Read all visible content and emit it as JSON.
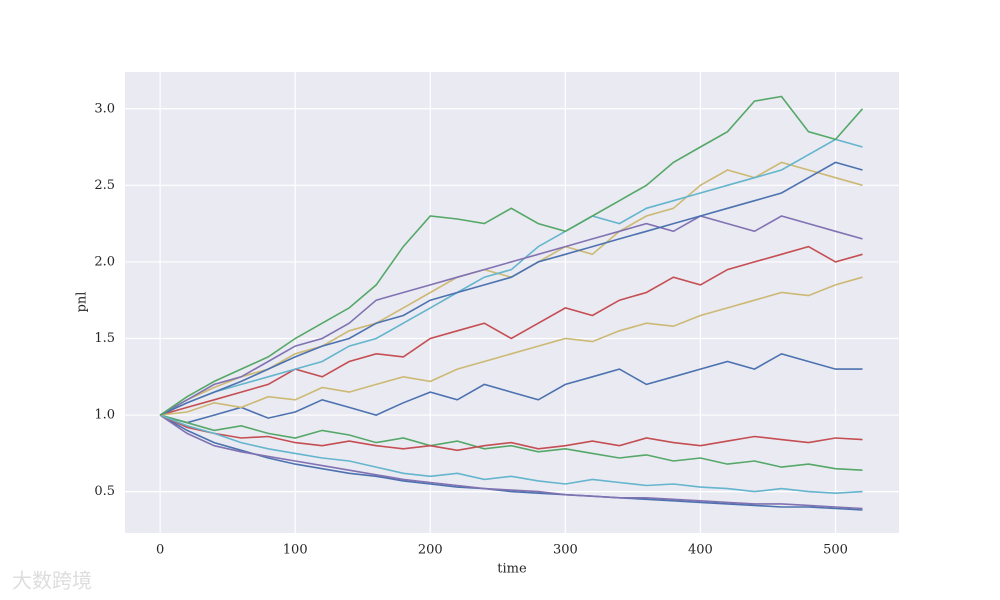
{
  "chart_data": {
    "type": "line",
    "xlabel": "time",
    "ylabel": "pnl",
    "xlim": [
      -26,
      547
    ],
    "ylim": [
      0.23,
      3.24
    ],
    "xticks": [
      0,
      100,
      200,
      300,
      400,
      500
    ],
    "yticks": [
      {
        "value": 0.5,
        "label": "0.5"
      },
      {
        "value": 1,
        "label": "1.0"
      },
      {
        "value": 1.5,
        "label": "1.5"
      },
      {
        "value": 2,
        "label": "2.0"
      },
      {
        "value": 2.5,
        "label": "2.5"
      },
      {
        "value": 3,
        "label": "3.0"
      }
    ],
    "grid": true,
    "background": "#eaeaf2",
    "x": [
      0,
      20,
      40,
      60,
      80,
      100,
      120,
      140,
      160,
      180,
      200,
      220,
      240,
      260,
      280,
      300,
      320,
      340,
      360,
      380,
      400,
      420,
      440,
      460,
      480,
      500,
      520
    ],
    "series": [
      {
        "color": "#4c72b0",
        "values": [
          1.0,
          0.9,
          0.82,
          0.77,
          0.72,
          0.68,
          0.65,
          0.62,
          0.6,
          0.57,
          0.55,
          0.53,
          0.52,
          0.5,
          0.49,
          0.48,
          0.47,
          0.46,
          0.45,
          0.44,
          0.43,
          0.42,
          0.41,
          0.4,
          0.4,
          0.39,
          0.38
        ]
      },
      {
        "color": "#8172b2",
        "values": [
          1.0,
          0.88,
          0.8,
          0.76,
          0.73,
          0.7,
          0.67,
          0.64,
          0.61,
          0.58,
          0.56,
          0.54,
          0.52,
          0.51,
          0.5,
          0.48,
          0.47,
          0.46,
          0.46,
          0.45,
          0.44,
          0.43,
          0.42,
          0.42,
          0.41,
          0.4,
          0.39
        ]
      },
      {
        "color": "#c44e52",
        "values": [
          1.0,
          1.05,
          1.1,
          1.15,
          1.2,
          1.3,
          1.25,
          1.35,
          1.4,
          1.38,
          1.5,
          1.55,
          1.6,
          1.5,
          1.6,
          1.7,
          1.65,
          1.75,
          1.8,
          1.9,
          1.85,
          1.95,
          2.0,
          2.05,
          2.1,
          2.0,
          2.05
        ]
      },
      {
        "color": "#ccb974",
        "values": [
          1.0,
          1.1,
          1.18,
          1.25,
          1.3,
          1.4,
          1.45,
          1.55,
          1.6,
          1.7,
          1.8,
          1.9,
          1.95,
          1.9,
          2.0,
          2.1,
          2.05,
          2.2,
          2.3,
          2.35,
          2.5,
          2.6,
          2.55,
          2.65,
          2.6,
          2.55,
          2.5
        ]
      },
      {
        "color": "#64b5cd",
        "values": [
          1.0,
          1.08,
          1.15,
          1.2,
          1.25,
          1.3,
          1.35,
          1.45,
          1.5,
          1.6,
          1.7,
          1.8,
          1.9,
          1.95,
          2.1,
          2.2,
          2.3,
          2.25,
          2.35,
          2.4,
          2.45,
          2.5,
          2.55,
          2.6,
          2.7,
          2.8,
          2.75
        ]
      },
      {
        "color": "#4c72b0",
        "values": [
          1.0,
          0.95,
          1.0,
          1.05,
          0.98,
          1.02,
          1.1,
          1.05,
          1.0,
          1.08,
          1.15,
          1.1,
          1.2,
          1.15,
          1.1,
          1.2,
          1.25,
          1.3,
          1.2,
          1.25,
          1.3,
          1.35,
          1.3,
          1.4,
          1.35,
          1.3,
          1.3
        ]
      },
      {
        "color": "#55a868",
        "values": [
          1.0,
          0.95,
          0.9,
          0.93,
          0.88,
          0.85,
          0.9,
          0.87,
          0.82,
          0.85,
          0.8,
          0.83,
          0.78,
          0.8,
          0.76,
          0.78,
          0.75,
          0.72,
          0.74,
          0.7,
          0.72,
          0.68,
          0.7,
          0.66,
          0.68,
          0.65,
          0.64
        ]
      },
      {
        "color": "#c44e52",
        "values": [
          1.0,
          0.92,
          0.88,
          0.85,
          0.86,
          0.82,
          0.8,
          0.83,
          0.8,
          0.78,
          0.8,
          0.77,
          0.8,
          0.82,
          0.78,
          0.8,
          0.83,
          0.8,
          0.85,
          0.82,
          0.8,
          0.83,
          0.86,
          0.84,
          0.82,
          0.85,
          0.84
        ]
      },
      {
        "color": "#8172b2",
        "values": [
          1.0,
          1.1,
          1.2,
          1.25,
          1.35,
          1.45,
          1.5,
          1.6,
          1.75,
          1.8,
          1.85,
          1.9,
          1.95,
          2.0,
          2.05,
          2.1,
          2.15,
          2.2,
          2.25,
          2.2,
          2.3,
          2.25,
          2.2,
          2.3,
          2.25,
          2.2,
          2.15
        ]
      },
      {
        "color": "#64b5cd",
        "values": [
          1.0,
          0.93,
          0.88,
          0.82,
          0.78,
          0.75,
          0.72,
          0.7,
          0.66,
          0.62,
          0.6,
          0.62,
          0.58,
          0.6,
          0.57,
          0.55,
          0.58,
          0.56,
          0.54,
          0.55,
          0.53,
          0.52,
          0.5,
          0.52,
          0.5,
          0.49,
          0.5
        ]
      },
      {
        "color": "#ccb974",
        "values": [
          1.0,
          1.02,
          1.08,
          1.05,
          1.12,
          1.1,
          1.18,
          1.15,
          1.2,
          1.25,
          1.22,
          1.3,
          1.35,
          1.4,
          1.45,
          1.5,
          1.48,
          1.55,
          1.6,
          1.58,
          1.65,
          1.7,
          1.75,
          1.8,
          1.78,
          1.85,
          1.9
        ]
      },
      {
        "color": "#4c72b0",
        "values": [
          1.0,
          1.08,
          1.15,
          1.22,
          1.3,
          1.38,
          1.45,
          1.5,
          1.6,
          1.65,
          1.75,
          1.8,
          1.85,
          1.9,
          2.0,
          2.05,
          2.1,
          2.15,
          2.2,
          2.25,
          2.3,
          2.35,
          2.4,
          2.45,
          2.55,
          2.65,
          2.6
        ]
      },
      {
        "color": "#55a868",
        "values": [
          1.0,
          1.12,
          1.22,
          1.3,
          1.38,
          1.5,
          1.6,
          1.7,
          1.85,
          2.1,
          2.3,
          2.28,
          2.25,
          2.35,
          2.25,
          2.2,
          2.3,
          2.4,
          2.5,
          2.65,
          2.75,
          2.85,
          3.05,
          3.08,
          2.85,
          2.8,
          3.0
        ]
      }
    ]
  },
  "watermark": "大数跨境"
}
